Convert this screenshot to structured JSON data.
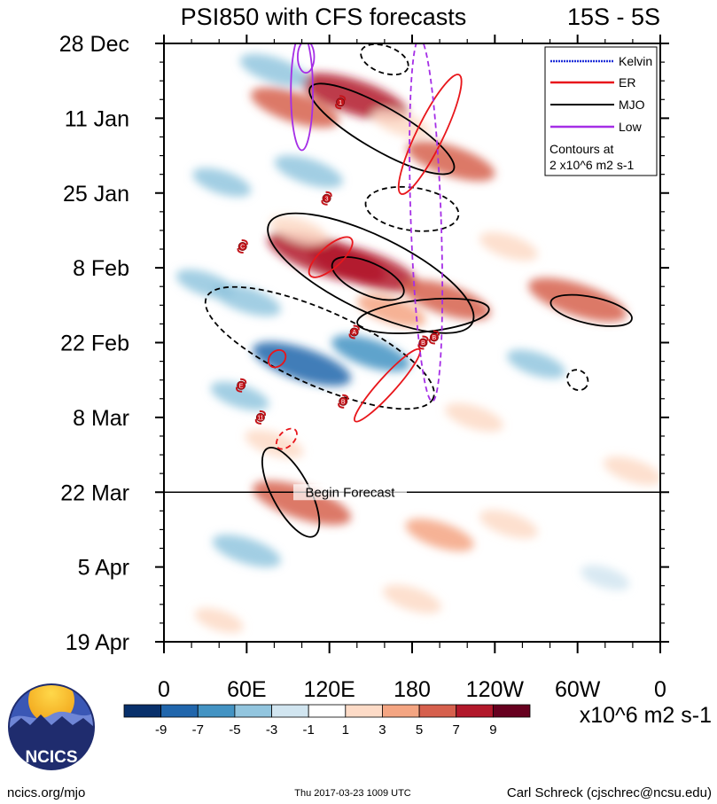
{
  "chart_data": {
    "type": "heatmap",
    "title": "PSI850 with CFS forecasts",
    "subtitle": "15S - 5S",
    "x_tick_labels": [
      "0",
      "60E",
      "120E",
      "180",
      "120W",
      "60W",
      "0"
    ],
    "x_range_deg_east": [
      0,
      360
    ],
    "x_ticks_deg_east": [
      0,
      60,
      120,
      180,
      240,
      300,
      360
    ],
    "y_tick_labels": [
      "28 Dec",
      "11 Jan",
      "25 Jan",
      "8 Feb",
      "22 Feb",
      "8 Mar",
      "22 Mar",
      "5 Apr",
      "19 Apr"
    ],
    "y_range_days_from_start": [
      0,
      112
    ],
    "y_ticks_days": [
      0,
      14,
      28,
      42,
      56,
      70,
      84,
      98,
      112
    ],
    "forecast_start_day": 84,
    "forecast_label": "Begin Forecast",
    "legend": {
      "placement": "top-right",
      "entries": [
        {
          "label": "Kelvin",
          "color": "#1f2fd8"
        },
        {
          "label": "ER",
          "color": "#e8161b"
        },
        {
          "label": "MJO",
          "color": "#000000"
        },
        {
          "label": "Low",
          "color": "#a52ee6"
        }
      ],
      "note_line1": "Contours at",
      "note_line2": "2 x10^6 m2 s-1"
    },
    "colorbar": {
      "labels": [
        "-9",
        "-7",
        "-5",
        "-3",
        "-1",
        "1",
        "3",
        "5",
        "7",
        "9"
      ],
      "levels": [
        -9,
        -7,
        -5,
        -3,
        -1,
        1,
        3,
        5,
        7,
        9
      ],
      "colors": [
        "#08306b",
        "#2166ac",
        "#4393c3",
        "#92c5de",
        "#d1e5f0",
        "#ffffff",
        "#fddbc7",
        "#f4a582",
        "#d6604d",
        "#b2182b",
        "#67001f"
      ],
      "units": "x10^6 m2 s-1"
    },
    "anomaly_blobs": [
      {
        "lon": 95,
        "day": 12,
        "value": 6
      },
      {
        "lon": 138,
        "day": 10,
        "value": 8
      },
      {
        "lon": 80,
        "day": 5,
        "value": -4
      },
      {
        "lon": 42,
        "day": 26,
        "value": -3
      },
      {
        "lon": 105,
        "day": 24,
        "value": -4
      },
      {
        "lon": 208,
        "day": 22,
        "value": 6
      },
      {
        "lon": 172,
        "day": 15,
        "value": 3
      },
      {
        "lon": 118,
        "day": 40,
        "value": 9
      },
      {
        "lon": 145,
        "day": 42,
        "value": 8
      },
      {
        "lon": 98,
        "day": 35,
        "value": 3
      },
      {
        "lon": 60,
        "day": 48,
        "value": -4
      },
      {
        "lon": 165,
        "day": 50,
        "value": 4
      },
      {
        "lon": 205,
        "day": 48,
        "value": 6
      },
      {
        "lon": 100,
        "day": 60,
        "value": -7
      },
      {
        "lon": 150,
        "day": 58,
        "value": -5
      },
      {
        "lon": 55,
        "day": 66,
        "value": -3
      },
      {
        "lon": 300,
        "day": 48,
        "value": 7
      },
      {
        "lon": 250,
        "day": 38,
        "value": 3
      },
      {
        "lon": 270,
        "day": 60,
        "value": -3
      },
      {
        "lon": 225,
        "day": 70,
        "value": 3
      },
      {
        "lon": 100,
        "day": 86,
        "value": 7
      },
      {
        "lon": 80,
        "day": 75,
        "value": 3
      },
      {
        "lon": 200,
        "day": 92,
        "value": 4
      },
      {
        "lon": 250,
        "day": 90,
        "value": 3
      },
      {
        "lon": 60,
        "day": 95,
        "value": -4
      },
      {
        "lon": 320,
        "day": 100,
        "value": -2
      },
      {
        "lon": 180,
        "day": 104,
        "value": 3
      },
      {
        "lon": 40,
        "day": 108,
        "value": 2
      },
      {
        "lon": 340,
        "day": 80,
        "value": 3
      },
      {
        "lon": 30,
        "day": 45,
        "value": -3
      }
    ],
    "contours": [
      {
        "kind": "MJO",
        "sign": "positive",
        "lon": 158,
        "day": 16,
        "rlon": 60,
        "rday": 4,
        "angle": 30
      },
      {
        "kind": "MJO",
        "sign": "positive",
        "lon": 150,
        "day": 43,
        "rlon": 82,
        "rday": 7,
        "angle": 26
      },
      {
        "kind": "MJO",
        "sign": "positive",
        "lon": 148,
        "day": 44,
        "rlon": 28,
        "rday": 3,
        "angle": 24
      },
      {
        "kind": "MJO",
        "sign": "positive",
        "lon": 188,
        "day": 51,
        "rlon": 48,
        "rday": 3,
        "angle": -6
      },
      {
        "kind": "MJO",
        "sign": "positive",
        "lon": 310,
        "day": 50,
        "rlon": 30,
        "rday": 2.5,
        "angle": 12
      },
      {
        "kind": "MJO",
        "sign": "positive",
        "lon": 92,
        "day": 84,
        "rlon": 36,
        "rday": 3.5,
        "angle": 62
      },
      {
        "kind": "MJO",
        "sign": "negative",
        "lon": 113,
        "day": 57,
        "rlon": 90,
        "rday": 7,
        "angle": 24
      },
      {
        "kind": "MJO",
        "sign": "negative",
        "lon": 180,
        "day": 31,
        "rlon": 34,
        "rday": 4,
        "angle": 8
      },
      {
        "kind": "MJO",
        "sign": "negative",
        "lon": 160,
        "day": 3,
        "rlon": 18,
        "rday": 2.5,
        "angle": 20
      },
      {
        "kind": "MJO",
        "sign": "negative",
        "lon": 300,
        "day": 63,
        "rlon": 8,
        "rday": 1.8,
        "angle": 40
      },
      {
        "kind": "ER",
        "sign": "positive",
        "lon": 193,
        "day": 17,
        "rlon": 48,
        "rday": 2.5,
        "angle": -64
      },
      {
        "kind": "ER",
        "sign": "positive",
        "lon": 121,
        "day": 40,
        "rlon": 20,
        "rday": 2,
        "angle": -42
      },
      {
        "kind": "ER",
        "sign": "positive",
        "lon": 162,
        "day": 64,
        "rlon": 35,
        "rday": 1.6,
        "angle": -48
      },
      {
        "kind": "ER",
        "sign": "positive",
        "lon": 82,
        "day": 59,
        "rlon": 7,
        "rday": 1.4,
        "angle": -45
      },
      {
        "kind": "ER",
        "sign": "negative",
        "lon": 89,
        "day": 74,
        "rlon": 9,
        "rday": 1.4,
        "angle": -45
      },
      {
        "kind": "Low",
        "sign": "positive",
        "lon": 100,
        "day": 9,
        "rlon": 8,
        "rday": 11,
        "angle": 0
      },
      {
        "kind": "Low",
        "sign": "negative",
        "lon": 190,
        "day": 33,
        "rlon": 11,
        "rday": 34,
        "angle": -2
      },
      {
        "kind": "Low",
        "sign": "positive",
        "lon": 103,
        "day": 2.5,
        "rlon": 6,
        "rday": 3,
        "angle": 0
      }
    ],
    "storm_markers": [
      {
        "lon": 128,
        "day": 11,
        "label": "1"
      },
      {
        "lon": 118,
        "day": 29,
        "label": "3"
      },
      {
        "lon": 57,
        "day": 38,
        "label": "C"
      },
      {
        "lon": 138,
        "day": 54,
        "label": "A"
      },
      {
        "lon": 56,
        "day": 64,
        "label": "E"
      },
      {
        "lon": 130,
        "day": 67,
        "label": "B"
      },
      {
        "lon": 70,
        "day": 70,
        "label": "11"
      },
      {
        "lon": 188,
        "day": 56,
        "label": "B"
      },
      {
        "lon": 196,
        "day": 55,
        "label": "B"
      }
    ]
  },
  "branding": {
    "logo_text": "NCICS",
    "footer_left": "ncics.org/mjo",
    "footer_center": "Thu 2017-03-23 1009 UTC",
    "footer_right": "Carl Schreck (cjschrec@ncsu.edu)"
  }
}
